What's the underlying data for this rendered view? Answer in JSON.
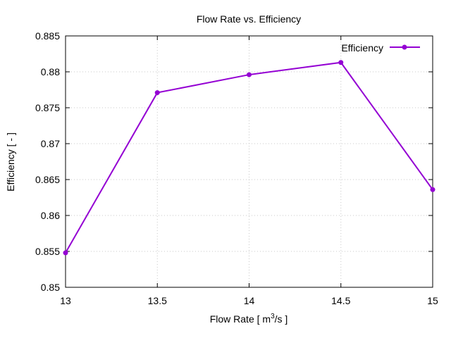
{
  "chart_data": {
    "type": "line",
    "title": "Flow Rate  vs. Efficiency",
    "xlabel_prefix": "Flow Rate [ m",
    "xlabel_sup": "3",
    "xlabel_suffix": "/s ]",
    "ylabel": "Efficiency [ - ]",
    "xlim": [
      13,
      15
    ],
    "ylim": [
      0.85,
      0.885
    ],
    "xticks": [
      "13",
      "13.5",
      "14",
      "14.5",
      "15"
    ],
    "yticks": [
      "0.85",
      "0.855",
      "0.86",
      "0.865",
      "0.87",
      "0.875",
      "0.88",
      "0.885"
    ],
    "grid": true,
    "legend_position": "top-right",
    "series": [
      {
        "name": "Efficiency",
        "color": "#9400d3",
        "x": [
          13,
          13.5,
          14,
          14.5,
          15
        ],
        "y": [
          0.8548,
          0.8771,
          0.8796,
          0.8813,
          0.8636
        ]
      }
    ]
  }
}
